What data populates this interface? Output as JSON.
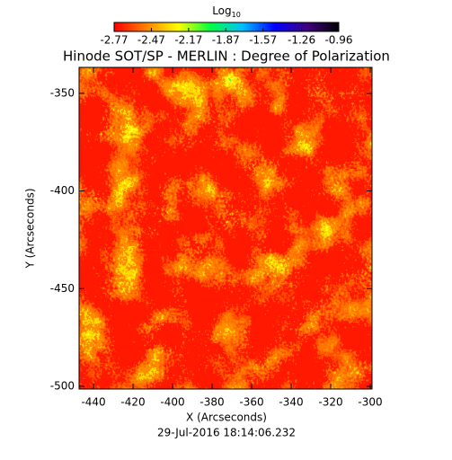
{
  "chart_data": {
    "type": "heatmap",
    "title": "Hinode SOT/SP - MERLIN : Degree of Polarization",
    "x_label": "X (Arcseconds)",
    "y_label": "Y (Arcseconds)",
    "footer": "29-Jul-2016 18:14:06.232",
    "colorbar": {
      "label": "Log",
      "label_subscript": "10",
      "lim": [
        -2.77,
        -0.96
      ],
      "ticks": [
        -2.77,
        -2.47,
        -2.17,
        -1.87,
        -1.57,
        -1.26,
        -0.96
      ],
      "colors": [
        "#ff0000",
        "#ff8000",
        "#ffff00",
        "#00ff40",
        "#00c0ff",
        "#0000ff",
        "#400080",
        "#000000"
      ]
    },
    "xlim": [
      -447.3,
      -299.1
    ],
    "xticks": [
      -440,
      -420,
      -400,
      -380,
      -360,
      -340,
      -320,
      -300
    ],
    "ylim": [
      -501.4,
      -336.7
    ],
    "yticks": [
      -350,
      -400,
      -450,
      -500
    ]
  }
}
